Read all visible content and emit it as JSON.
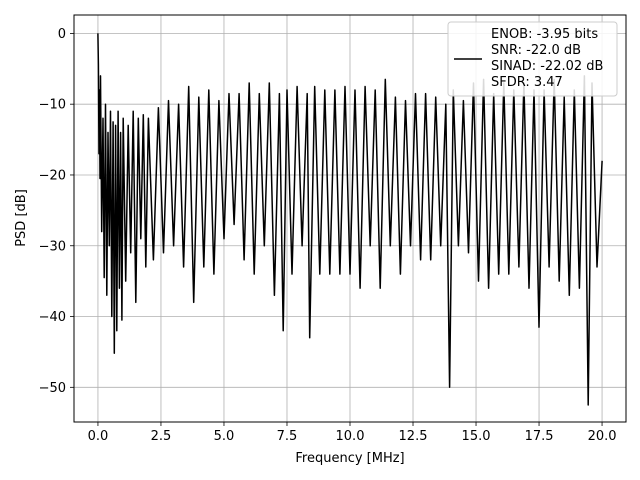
{
  "chart_data": {
    "type": "line",
    "xlabel": "Frequency [MHz]",
    "ylabel": "PSD [dB]",
    "xlim": [
      -0.95,
      20.95
    ],
    "ylim": [
      -54.9,
      2.6
    ],
    "xticks": [
      0.0,
      2.5,
      5.0,
      7.5,
      10.0,
      12.5,
      15.0,
      17.5,
      20.0
    ],
    "xtick_labels": [
      "0.0",
      "2.5",
      "5.0",
      "7.5",
      "10.0",
      "12.5",
      "15.0",
      "17.5",
      "20.0"
    ],
    "yticks": [
      0,
      -10,
      -20,
      -30,
      -40,
      -50
    ],
    "ytick_labels": [
      "0",
      "−10",
      "−20",
      "−30",
      "−40",
      "−50"
    ],
    "grid": true,
    "legend_position": "top-right",
    "line_color": "#000000",
    "series": [
      {
        "name": "ENOB: -3.95 bits\nSNR: -22.0 dB\nSINAD: -22.02 dB\nSFDR: 3.47",
        "x": [
          0.0,
          0.02,
          0.04,
          0.06,
          0.08,
          0.1,
          0.15,
          0.2,
          0.25,
          0.3,
          0.35,
          0.4,
          0.45,
          0.5,
          0.55,
          0.6,
          0.65,
          0.7,
          0.75,
          0.8,
          0.85,
          0.9,
          0.95,
          1.0,
          1.1,
          1.2,
          1.3,
          1.4,
          1.5,
          1.6,
          1.7,
          1.8,
          1.9,
          2.0,
          2.2,
          2.4,
          2.6,
          2.8,
          3.0,
          3.2,
          3.4,
          3.6,
          3.8,
          4.0,
          4.2,
          4.4,
          4.6,
          4.8,
          5.0,
          5.2,
          5.4,
          5.6,
          5.8,
          6.0,
          6.2,
          6.4,
          6.6,
          6.8,
          7.0,
          7.2,
          7.35,
          7.5,
          7.7,
          7.9,
          8.1,
          8.3,
          8.4,
          8.6,
          8.8,
          9.0,
          9.2,
          9.4,
          9.6,
          9.8,
          10.0,
          10.2,
          10.4,
          10.6,
          10.8,
          11.0,
          11.2,
          11.4,
          11.6,
          11.8,
          12.0,
          12.2,
          12.4,
          12.6,
          12.8,
          13.0,
          13.2,
          13.4,
          13.6,
          13.8,
          13.95,
          14.1,
          14.3,
          14.5,
          14.7,
          14.9,
          15.1,
          15.3,
          15.5,
          15.7,
          15.9,
          16.1,
          16.3,
          16.5,
          16.7,
          16.9,
          17.1,
          17.3,
          17.5,
          17.7,
          17.9,
          18.1,
          18.3,
          18.5,
          18.7,
          18.9,
          19.1,
          19.3,
          19.45,
          19.6,
          19.8,
          20.0
        ],
        "y": [
          0.0,
          -4.5,
          -17.0,
          -8.0,
          -20.5,
          -6.0,
          -28.0,
          -12.0,
          -34.5,
          -10.0,
          -37.0,
          -14.0,
          -30.0,
          -11.0,
          -40.0,
          -12.5,
          -45.2,
          -13.0,
          -42.0,
          -11.0,
          -36.0,
          -14.0,
          -40.5,
          -12.0,
          -35.0,
          -13.0,
          -31.0,
          -11.0,
          -38.0,
          -12.0,
          -29.0,
          -11.5,
          -33.0,
          -12.0,
          -32.0,
          -10.5,
          -31.0,
          -9.5,
          -30.0,
          -10.0,
          -33.0,
          -7.5,
          -38.0,
          -9.0,
          -33.0,
          -8.0,
          -34.0,
          -9.5,
          -29.0,
          -8.5,
          -27.0,
          -8.5,
          -32.0,
          -7.0,
          -34.0,
          -8.5,
          -30.0,
          -7.0,
          -37.0,
          -8.5,
          -42.0,
          -8.0,
          -34.0,
          -7.5,
          -30.0,
          -8.5,
          -43.0,
          -7.5,
          -34.0,
          -8.0,
          -34.0,
          -8.0,
          -34.0,
          -7.5,
          -34.0,
          -8.0,
          -36.0,
          -7.5,
          -30.0,
          -8.0,
          -36.0,
          -6.5,
          -30.0,
          -9.0,
          -34.0,
          -9.5,
          -30.0,
          -8.5,
          -32.0,
          -8.5,
          -32.0,
          -9.0,
          -30.0,
          -10.0,
          -50.0,
          -8.0,
          -30.0,
          -9.5,
          -31.0,
          -7.0,
          -35.0,
          -6.5,
          -36.0,
          -8.5,
          -34.0,
          -7.0,
          -34.0,
          -8.0,
          -33.0,
          -7.0,
          -36.0,
          -8.0,
          -41.5,
          -8.0,
          -33.0,
          -6.5,
          -35.0,
          -9.0,
          -37.0,
          -8.0,
          -36.0,
          -6.0,
          -52.5,
          -7.0,
          -33.0,
          -18.0
        ]
      }
    ]
  }
}
